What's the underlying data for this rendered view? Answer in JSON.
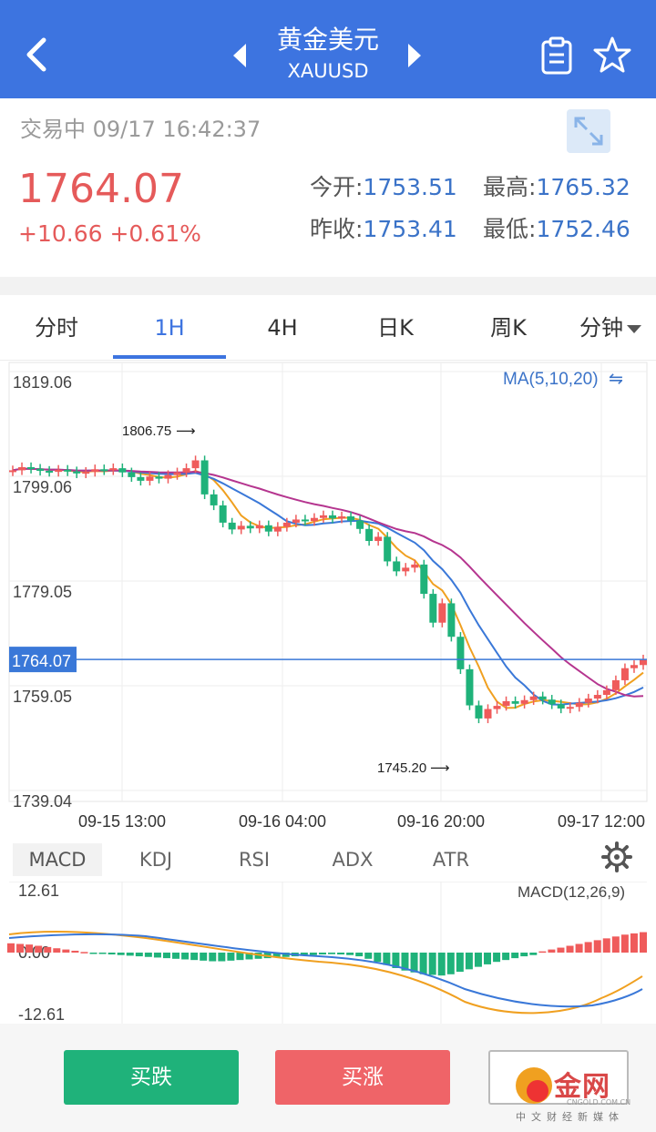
{
  "header": {
    "title": "黄金美元",
    "subtitle": "XAUUSD"
  },
  "quote": {
    "status": "交易中",
    "datetime": "09/17 16:42:37",
    "last_price": "1764.07",
    "change": "+10.66",
    "change_pct": "+0.61%",
    "open_label": "今开:",
    "open_value": "1753.51",
    "high_label": "最高:",
    "high_value": "1765.32",
    "prev_close_label": "昨收:",
    "prev_close_value": "1753.41",
    "low_label": "最低:",
    "low_value": "1752.46",
    "up_color": "#e55a5a",
    "value_color": "#3b73c8"
  },
  "tabs": [
    {
      "label": "分时"
    },
    {
      "label": "1H",
      "active": true
    },
    {
      "label": "4H"
    },
    {
      "label": "日K"
    },
    {
      "label": "周K"
    },
    {
      "label": "分钟"
    }
  ],
  "chart_data": {
    "type": "candlestick",
    "y_axis_labels": [
      "1819.06",
      "1799.06",
      "1779.05",
      "1759.05",
      "1739.04"
    ],
    "x_axis_labels": [
      "09-15 13:00",
      "09-16 04:00",
      "09-16 20:00",
      "09-17 12:00"
    ],
    "ylim": [
      1739.04,
      1819.06
    ],
    "current_price_label": "1764.07",
    "current_price": 1764.07,
    "indicator_legend": "MA(5,10,20)",
    "high_marker": "1806.75",
    "low_marker": "1745.20",
    "bull_color": "#ef5b5b",
    "bear_color": "#1fb27a",
    "ma_colors": {
      "ma5": "#f0a020",
      "ma10": "#3a78d8",
      "ma20": "#b5358f"
    }
  },
  "indicators": {
    "tabs": [
      "MACD",
      "KDJ",
      "RSI",
      "ADX",
      "ATR"
    ],
    "active": "MACD",
    "macd_legend": "MACD(12,26,9)",
    "y_labels": [
      "12.61",
      "0.00",
      "-12.61"
    ]
  },
  "footer": {
    "sell_label": "买跌",
    "buy_label": "买涨"
  },
  "watermark": {
    "text": "金网",
    "sub": "中文财经新媒体",
    "url": "CNGOLD.COM.CN"
  }
}
